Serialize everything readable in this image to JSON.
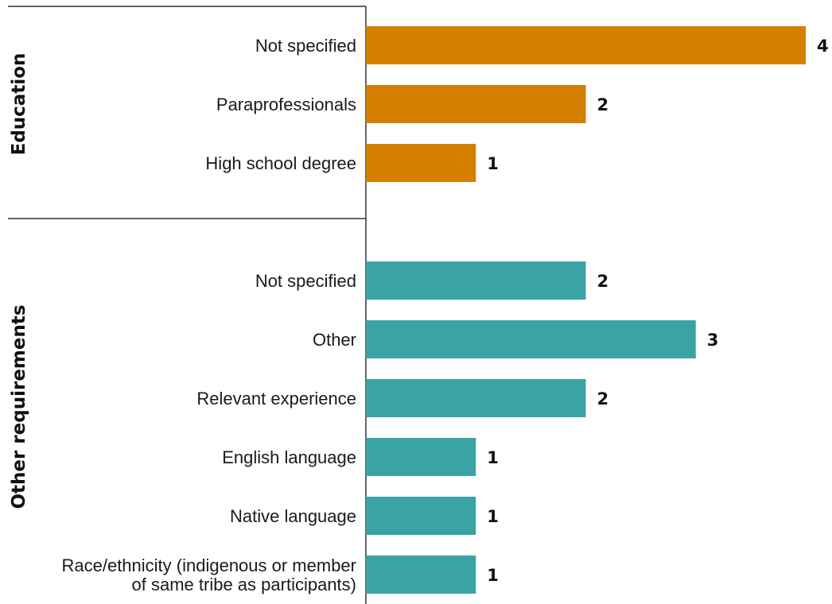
{
  "chart_data": {
    "type": "bar",
    "orientation": "horizontal",
    "grid": false,
    "legend": "none",
    "xlim": [
      0,
      4
    ],
    "groups": [
      {
        "name": "Education",
        "color": "#D47F00",
        "categories": [
          "Not specified",
          "Paraprofessionals",
          "High school degree"
        ],
        "values": [
          4,
          2,
          1
        ]
      },
      {
        "name": "Other requirements",
        "color": "#3AA3A4",
        "categories": [
          "Not specified",
          "Other",
          "Relevant experience",
          "English language",
          "Native language",
          [
            "Race/ethnicity (indigenous or member",
            "of same tribe as participants)"
          ]
        ],
        "values": [
          2,
          3,
          2,
          1,
          1,
          1
        ]
      }
    ]
  }
}
